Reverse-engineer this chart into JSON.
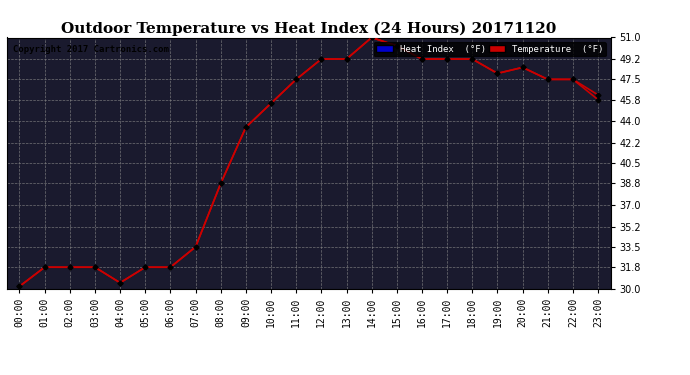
{
  "title": "Outdoor Temperature vs Heat Index (24 Hours) 20171120",
  "copyright": "Copyright 2017 Cartronics.com",
  "x_labels": [
    "00:00",
    "01:00",
    "02:00",
    "03:00",
    "04:00",
    "05:00",
    "06:00",
    "07:00",
    "08:00",
    "09:00",
    "10:00",
    "11:00",
    "12:00",
    "13:00",
    "14:00",
    "15:00",
    "16:00",
    "17:00",
    "18:00",
    "19:00",
    "20:00",
    "21:00",
    "22:00",
    "23:00"
  ],
  "temperature": [
    30.2,
    31.8,
    31.8,
    31.8,
    30.5,
    31.8,
    31.8,
    33.5,
    38.8,
    43.5,
    45.5,
    47.5,
    49.2,
    49.2,
    51.0,
    50.3,
    49.2,
    49.2,
    49.2,
    48.0,
    48.5,
    47.5,
    47.5,
    46.2
  ],
  "heat_index": [
    30.2,
    31.8,
    31.8,
    31.8,
    30.5,
    31.8,
    31.8,
    33.5,
    38.8,
    43.5,
    45.5,
    47.5,
    49.2,
    49.2,
    51.0,
    50.3,
    49.2,
    49.2,
    49.2,
    48.0,
    48.5,
    47.5,
    47.5,
    45.8
  ],
  "ylim": [
    30.0,
    51.0
  ],
  "yticks": [
    30.0,
    31.8,
    33.5,
    35.2,
    37.0,
    38.8,
    40.5,
    42.2,
    44.0,
    45.8,
    47.5,
    49.2,
    51.0
  ],
  "temp_color": "#cc0000",
  "heat_color": "#cc0000",
  "plot_bg_color": "#1a1a2e",
  "fig_bg_color": "#ffffff",
  "grid_color": "#888888",
  "title_fontsize": 11,
  "tick_fontsize": 7,
  "legend_heat_bg": "#0000cc",
  "legend_temp_bg": "#cc0000",
  "legend_text_color": "#ffffff"
}
